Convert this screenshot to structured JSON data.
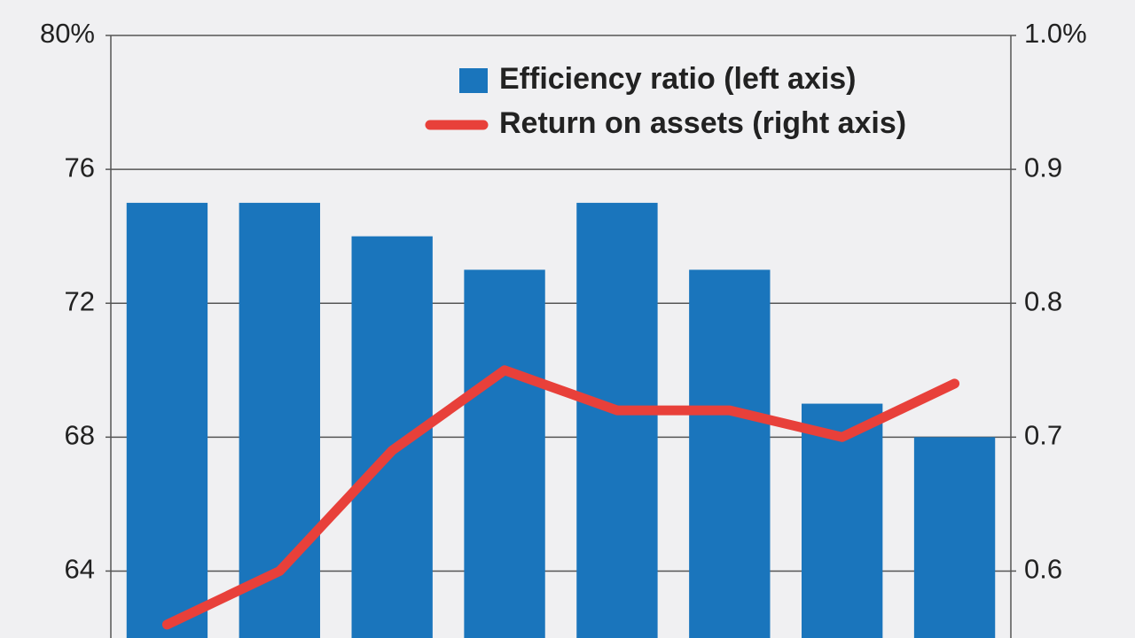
{
  "chart_data": {
    "type": "bar_line",
    "categories": [
      null,
      null,
      null,
      null,
      null,
      null,
      null,
      null
    ],
    "series": [
      {
        "name": "Efficiency ratio (left axis)",
        "type": "bar",
        "color": "#1a75bc",
        "values": [
          75,
          75,
          74,
          73,
          75,
          73,
          69,
          68
        ]
      },
      {
        "name": "Return on assets (right axis)",
        "type": "line",
        "axis": "y2",
        "color": "#e8403a",
        "values": [
          0.56,
          0.6,
          0.69,
          0.75,
          0.72,
          0.72,
          0.7,
          0.74
        ]
      }
    ],
    "ylim": [
      62,
      80
    ],
    "yticks": [
      64,
      68,
      72,
      76,
      {
        "value": 80,
        "label": "80%"
      }
    ],
    "y2lim": [
      0.55,
      1.0
    ],
    "y2ticks": [
      0.6,
      0.7,
      0.8,
      0.9,
      {
        "value": 1.0,
        "label": "1.0%"
      }
    ],
    "grid": true,
    "legend": "upper right"
  }
}
